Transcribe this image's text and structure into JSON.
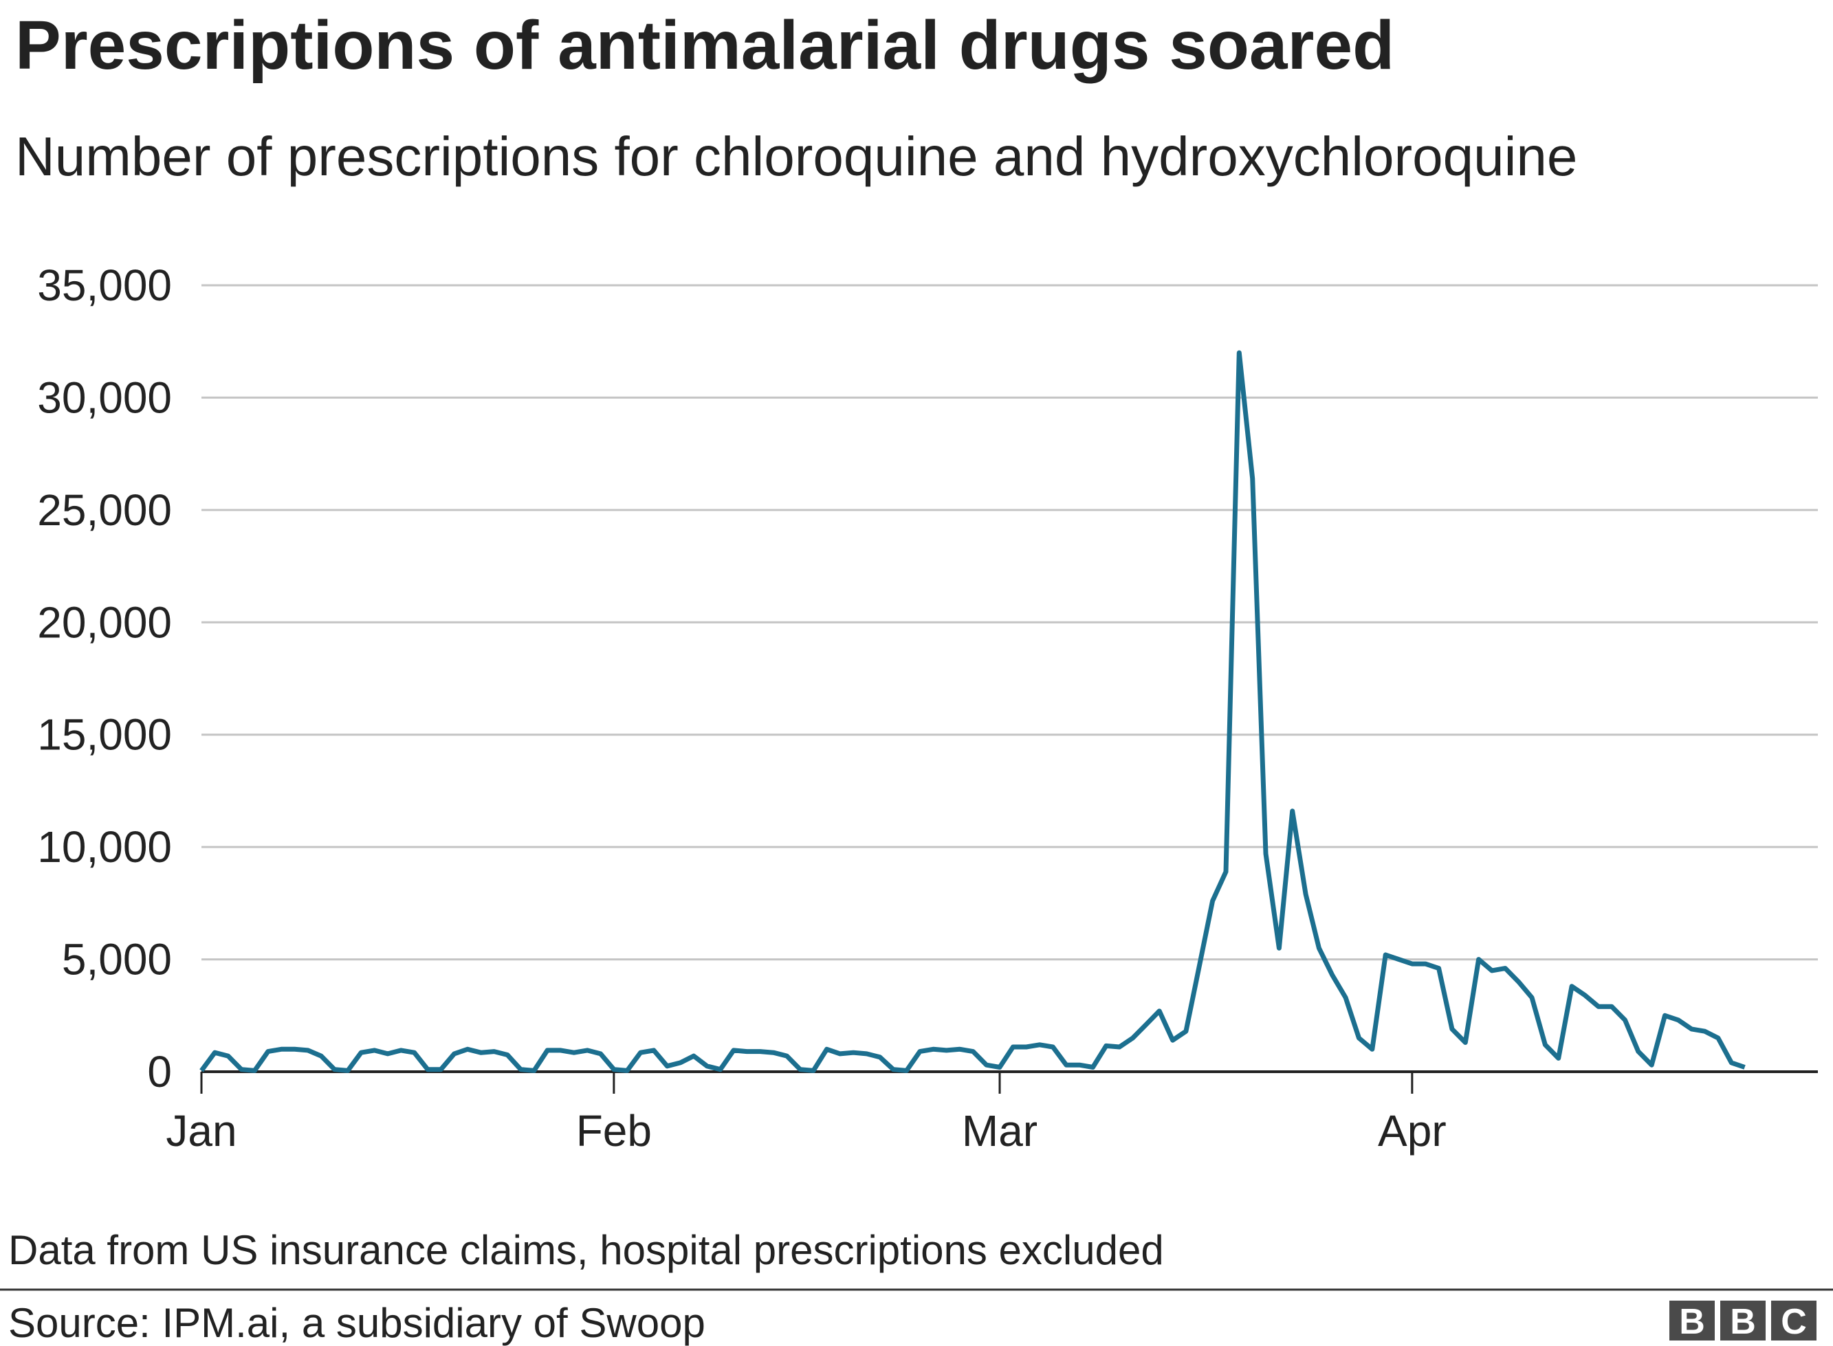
{
  "chart_data": {
    "type": "line",
    "title": "Prescriptions of antimalarial drugs soared",
    "subtitle": "Number of prescriptions for chloroquine and hydroxychloroquine",
    "xlabel": "",
    "ylabel": "",
    "x_start": "Jan 1",
    "x_end": "Apr 26",
    "x_ticks": [
      "Jan",
      "Feb",
      "Mar",
      "Apr"
    ],
    "y_ticks": [
      "0",
      "5,000",
      "10,000",
      "15,000",
      "20,000",
      "25,000",
      "30,000",
      "35,000"
    ],
    "ylim": [
      0,
      35000
    ],
    "grid": "horizontal",
    "line_color": "#1c6f8f",
    "series": [
      {
        "daily_values": {
          "Jan": [
            50,
            850,
            700,
            100,
            50,
            900,
            1000,
            1000,
            950,
            700,
            100,
            50,
            850,
            950,
            800,
            950,
            850,
            100,
            100,
            800,
            1000,
            850,
            900,
            750,
            100,
            50,
            950,
            950,
            850,
            950,
            800
          ],
          "Feb": [
            100,
            50,
            850,
            950,
            250,
            400,
            700,
            250,
            100,
            950,
            900,
            900,
            850,
            700,
            100,
            50,
            1000,
            800,
            850,
            800,
            650,
            100,
            50,
            900,
            1000,
            950,
            1000,
            900,
            300
          ],
          "Mar": [
            200,
            1100,
            1100,
            1200,
            1100,
            300,
            300,
            200,
            1150,
            1100,
            1500,
            2100,
            2700,
            1400,
            1800,
            4700,
            7600,
            8900,
            32000,
            26400,
            9700,
            5500,
            11600,
            7900,
            5500,
            4300,
            3300,
            1500,
            1000,
            5200,
            5000
          ],
          "Apr": [
            4800,
            4800,
            4600,
            1900,
            1300,
            5000,
            4500,
            4600,
            4000,
            3300,
            1200,
            600,
            3800,
            3400,
            2900,
            2900,
            2300,
            900,
            300,
            2500,
            2300,
            1900,
            1800,
            1500,
            400,
            200
          ]
        }
      }
    ]
  },
  "footer": {
    "note": "Data from US insurance claims, hospital prescriptions excluded",
    "source": "Source: IPM.ai, a subsidiary of Swoop",
    "logo": "BBC"
  }
}
